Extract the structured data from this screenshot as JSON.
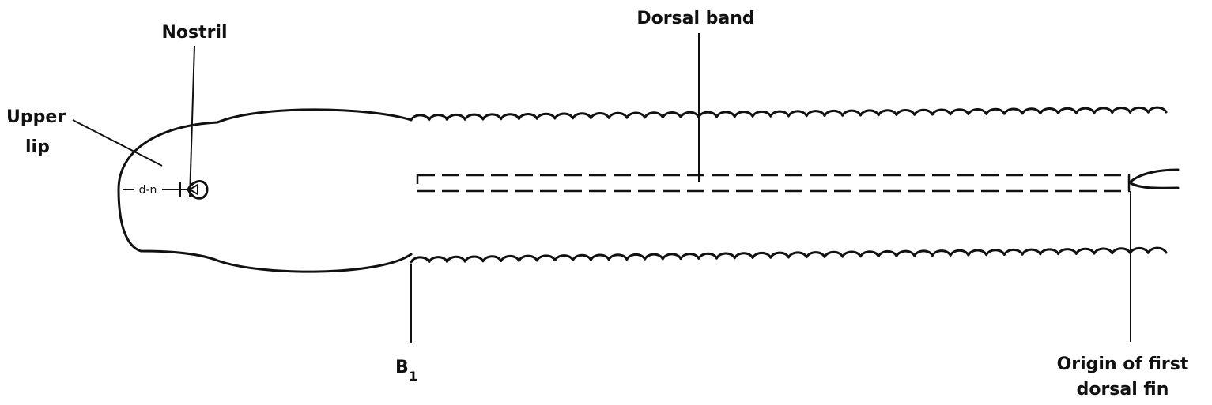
{
  "labels": {
    "nostril": "Nostril",
    "upper_lip": [
      "Upper",
      "lip"
    ],
    "d_n": "d-n",
    "dorsal_band": "Dorsal band",
    "b1": {
      "base": "B",
      "subscript": "1"
    },
    "origin_first_dorsal_fin": [
      "Origin of first",
      "dorsal fin"
    ]
  }
}
